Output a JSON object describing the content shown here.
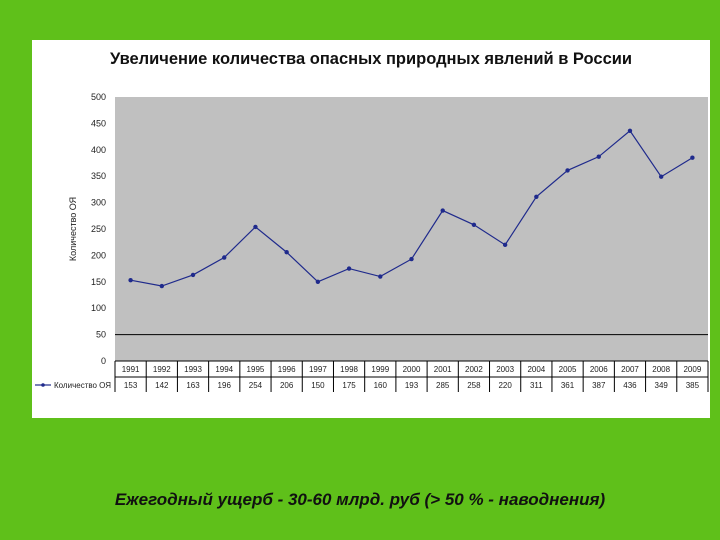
{
  "chart_data": {
    "type": "line",
    "title": "Увеличение количества опасных природных явлений в России",
    "ylabel": "Количество ОЯ",
    "xlabel": "",
    "ylim": [
      0,
      500
    ],
    "yticks": [
      0,
      50,
      100,
      150,
      200,
      250,
      300,
      350,
      400,
      450,
      500
    ],
    "categories": [
      "1991",
      "1992",
      "1993",
      "1994",
      "1995",
      "1996",
      "1997",
      "1998",
      "1999",
      "2000",
      "2001",
      "2002",
      "2003",
      "2004",
      "2005",
      "2006",
      "2007",
      "2008",
      "2009"
    ],
    "series": [
      {
        "name": "Количество ОЯ",
        "values": [
          153,
          142,
          163,
          196,
          254,
          206,
          150,
          175,
          160,
          193,
          285,
          258,
          220,
          311,
          361,
          387,
          436,
          349,
          385
        ]
      }
    ],
    "data_table": true,
    "grid": false,
    "legend": "data-table"
  },
  "colors": {
    "background": "#5fc01a",
    "plot_area": "#c0c0c0",
    "line": "#1f2a8c"
  },
  "footer": {
    "text": "Ежегодный ущерб - 30-60 млрд. руб (> 50 % - наводнения)"
  }
}
